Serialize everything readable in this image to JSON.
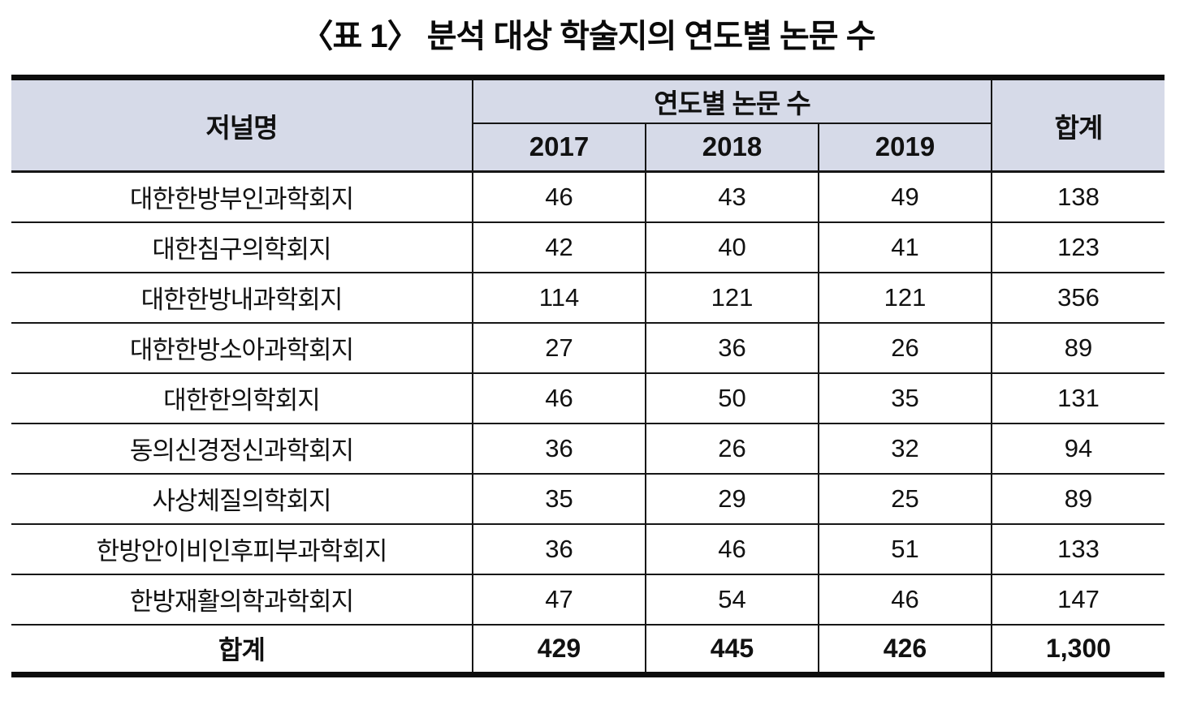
{
  "title": "〈표 1〉 분석 대상 학술지의 연도별 논문 수",
  "colors": {
    "header_bg": "#d6dae8",
    "rule": "#161616"
  },
  "table": {
    "col_journal": "저널명",
    "col_group": "연도별 논문 수",
    "years": [
      "2017",
      "2018",
      "2019"
    ],
    "col_total": "합계",
    "rows": [
      {
        "journal": "대한한방부인과학회지",
        "values": [
          "46",
          "43",
          "49",
          "138"
        ]
      },
      {
        "journal": "대한침구의학회지",
        "values": [
          "42",
          "40",
          "41",
          "123"
        ]
      },
      {
        "journal": "대한한방내과학회지",
        "values": [
          "114",
          "121",
          "121",
          "356"
        ]
      },
      {
        "journal": "대한한방소아과학회지",
        "values": [
          "27",
          "36",
          "26",
          "89"
        ]
      },
      {
        "journal": "대한한의학회지",
        "values": [
          "46",
          "50",
          "35",
          "131"
        ]
      },
      {
        "journal": "동의신경정신과학회지",
        "values": [
          "36",
          "26",
          "32",
          "94"
        ]
      },
      {
        "journal": "사상체질의학회지",
        "values": [
          "35",
          "29",
          "25",
          "89"
        ]
      },
      {
        "journal": "한방안이비인후피부과학회지",
        "values": [
          "36",
          "46",
          "51",
          "133"
        ]
      },
      {
        "journal": "한방재활의학과학회지",
        "values": [
          "47",
          "54",
          "46",
          "147"
        ]
      }
    ],
    "footer": {
      "label": "합계",
      "values": [
        "429",
        "445",
        "426",
        "1,300"
      ]
    }
  }
}
